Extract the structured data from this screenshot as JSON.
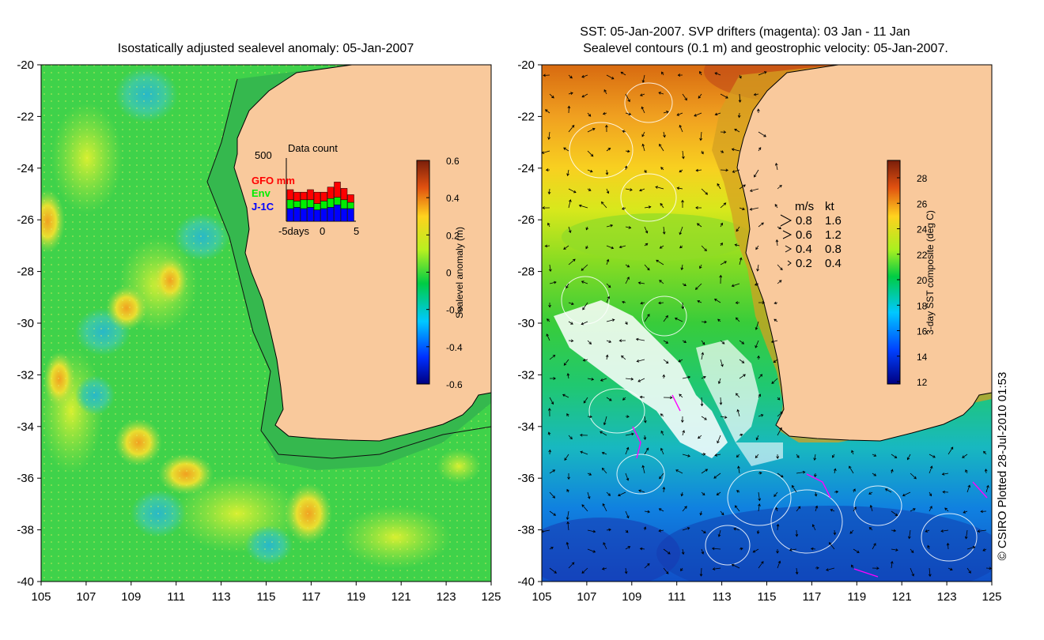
{
  "left_panel": {
    "title": "Isostatically adjusted sealevel anomaly: 05-Jan-2007",
    "x_ticks": [
      "105",
      "107",
      "109",
      "111",
      "113",
      "115",
      "117",
      "119",
      "121",
      "123",
      "125"
    ],
    "y_ticks": [
      "-20",
      "-22",
      "-24",
      "-26",
      "-28",
      "-30",
      "-32",
      "-34",
      "-36",
      "-38",
      "-40"
    ],
    "colorbar": {
      "label": "Sealevel anomaly (m)",
      "ticks": [
        "0.6",
        "0.4",
        "0.2",
        "0",
        "-0.2",
        "-0.4",
        "-0.6"
      ],
      "range": [
        -0.6,
        0.6
      ]
    },
    "inset": {
      "title": "Data count",
      "ymax_label": "500",
      "series": [
        {
          "name": "GFO mm",
          "color": "#ff0000"
        },
        {
          "name": "Env",
          "color": "#00ee00"
        },
        {
          "name": "J-1C",
          "color": "#0000ff"
        }
      ],
      "xlabel_left": "-5days",
      "xlabel_mid": "0",
      "xlabel_right": "5",
      "days": [
        -5,
        -4,
        -3,
        -2,
        -1,
        0,
        1,
        2,
        3,
        4
      ],
      "counts": [
        {
          "gfo": 80,
          "env": 70,
          "j1c": 100
        },
        {
          "gfo": 70,
          "env": 50,
          "j1c": 110
        },
        {
          "gfo": 60,
          "env": 70,
          "j1c": 100
        },
        {
          "gfo": 80,
          "env": 60,
          "j1c": 110
        },
        {
          "gfo": 90,
          "env": 50,
          "j1c": 90
        },
        {
          "gfo": 70,
          "env": 60,
          "j1c": 100
        },
        {
          "gfo": 90,
          "env": 70,
          "j1c": 110
        },
        {
          "gfo": 120,
          "env": 60,
          "j1c": 130
        },
        {
          "gfo": 90,
          "env": 70,
          "j1c": 100
        },
        {
          "gfo": 60,
          "env": 50,
          "j1c": 100
        }
      ]
    }
  },
  "right_panel": {
    "title_line1": "SST: 05-Jan-2007. SVP drifters (magenta): 03 Jan - 11 Jan",
    "title_line2": "Sealevel contours (0.1 m) and geostrophic velocity: 05-Jan-2007.",
    "x_ticks": [
      "105",
      "107",
      "109",
      "111",
      "113",
      "115",
      "117",
      "119",
      "121",
      "123",
      "125"
    ],
    "y_ticks": [
      "-20",
      "-22",
      "-24",
      "-26",
      "-28",
      "-30",
      "-32",
      "-34",
      "-36",
      "-38",
      "-40"
    ],
    "colorbar": {
      "label": "3-day SST composite (deg C)",
      "ticks": [
        "28",
        "26",
        "24",
        "22",
        "20",
        "18",
        "16",
        "14",
        "12"
      ],
      "range": [
        12,
        29
      ]
    },
    "velocity_legend": {
      "header_ms": "m/s",
      "header_kt": "kt",
      "rows": [
        {
          "ms": "0.8",
          "kt": "1.6"
        },
        {
          "ms": "0.6",
          "kt": "1.2"
        },
        {
          "ms": "0.4",
          "kt": "0.8"
        },
        {
          "ms": "0.2",
          "kt": "0.4"
        }
      ]
    }
  },
  "credit": "© CSIRO Plotted 28-Jul-2010 01:53",
  "colors": {
    "land": "#f9c99c",
    "sla_ocean": "#3fd24a",
    "coast": "#000000"
  }
}
